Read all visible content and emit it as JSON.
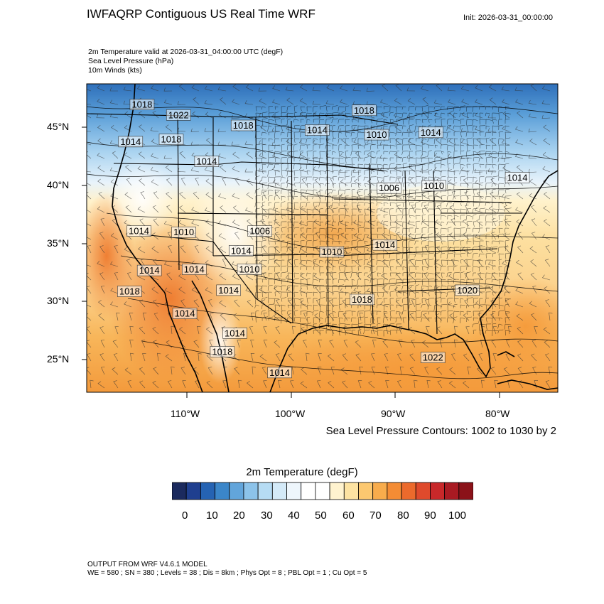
{
  "header": {
    "title": "IWFAQRP Contiguous US Real Time WRF",
    "init": "Init: 2026-03-31_00:00:00",
    "subtitles": [
      "2m Temperature valid at 2026-03-31_04:00:00 UTC   (degF)",
      "Sea Level Pressure   (hPa)",
      "10m Winds   (kts)"
    ]
  },
  "map": {
    "lat_labels": [
      "45°N",
      "40°N",
      "35°N",
      "30°N",
      "25°N"
    ],
    "lon_labels": [
      "110°W",
      "100°W",
      "90°W",
      "80°W"
    ],
    "pressure_labels": [
      {
        "text": "1018",
        "lon": -114.3,
        "lat": 46.8
      },
      {
        "text": "1022",
        "lon": -110.8,
        "lat": 45.9
      },
      {
        "text": "1018",
        "lon": -104.6,
        "lat": 45.0
      },
      {
        "text": "1014",
        "lon": -97.5,
        "lat": 44.6
      },
      {
        "text": "1018",
        "lon": -93.0,
        "lat": 46.3
      },
      {
        "text": "1010",
        "lon": -91.8,
        "lat": 44.2
      },
      {
        "text": "1014",
        "lon": -86.6,
        "lat": 44.4
      },
      {
        "text": "1014",
        "lon": -115.4,
        "lat": 43.6
      },
      {
        "text": "1018",
        "lon": -111.5,
        "lat": 43.8
      },
      {
        "text": "1014",
        "lon": -108.1,
        "lat": 41.9
      },
      {
        "text": "1006",
        "lon": -90.6,
        "lat": 39.6
      },
      {
        "text": "1010",
        "lon": -86.3,
        "lat": 39.8
      },
      {
        "text": "1014",
        "lon": -78.3,
        "lat": 40.5
      },
      {
        "text": "1014",
        "lon": -114.6,
        "lat": 35.9
      },
      {
        "text": "1010",
        "lon": -110.3,
        "lat": 35.8
      },
      {
        "text": "1006",
        "lon": -103.0,
        "lat": 35.9
      },
      {
        "text": "1014",
        "lon": -104.8,
        "lat": 34.2
      },
      {
        "text": "1010",
        "lon": -96.1,
        "lat": 34.1
      },
      {
        "text": "1014",
        "lon": -91.0,
        "lat": 34.7
      },
      {
        "text": "1010",
        "lon": -104.0,
        "lat": 32.6
      },
      {
        "text": "1014",
        "lon": -113.6,
        "lat": 32.5
      },
      {
        "text": "1014",
        "lon": -109.3,
        "lat": 32.6
      },
      {
        "text": "1018",
        "lon": -115.5,
        "lat": 30.7
      },
      {
        "text": "1014",
        "lon": -106.0,
        "lat": 30.8
      },
      {
        "text": "1018",
        "lon": -93.2,
        "lat": 30.0
      },
      {
        "text": "1020",
        "lon": -83.1,
        "lat": 30.8
      },
      {
        "text": "1014",
        "lon": -110.2,
        "lat": 28.8
      },
      {
        "text": "1014",
        "lon": -105.4,
        "lat": 27.1
      },
      {
        "text": "1018",
        "lon": -106.6,
        "lat": 25.5
      },
      {
        "text": "1014",
        "lon": -101.1,
        "lat": 23.7
      },
      {
        "text": "1022",
        "lon": -86.4,
        "lat": 25.0
      }
    ]
  },
  "contour_note": "Sea Level Pressure Contours: 1002 to 1030 by 2",
  "colorbar": {
    "title": "2m Temperature  (degF)",
    "colors": [
      "#1b2a5e",
      "#1f3f8f",
      "#2563b3",
      "#3b86c9",
      "#62a5db",
      "#8cc3ea",
      "#b6dcf4",
      "#d4eaf8",
      "#eef6fc",
      "#ffffff",
      "#ffffff",
      "#fff3cf",
      "#fde3a2",
      "#fcc870",
      "#f8ac4c",
      "#f48c34",
      "#ec6a2c",
      "#df4a2c",
      "#c8282a",
      "#a91a22",
      "#8b1219"
    ],
    "labels": [
      "0",
      "10",
      "20",
      "30",
      "40",
      "50",
      "60",
      "70",
      "80",
      "90",
      "100"
    ]
  },
  "footer": {
    "line1": "OUTPUT FROM WRF V4.6.1 MODEL",
    "line2": "WE = 580 ; SN = 380 ; Levels = 38 ; Dis = 8km ; Phys Opt = 8 ; PBL Opt = 1 ; Cu Opt = 5"
  }
}
